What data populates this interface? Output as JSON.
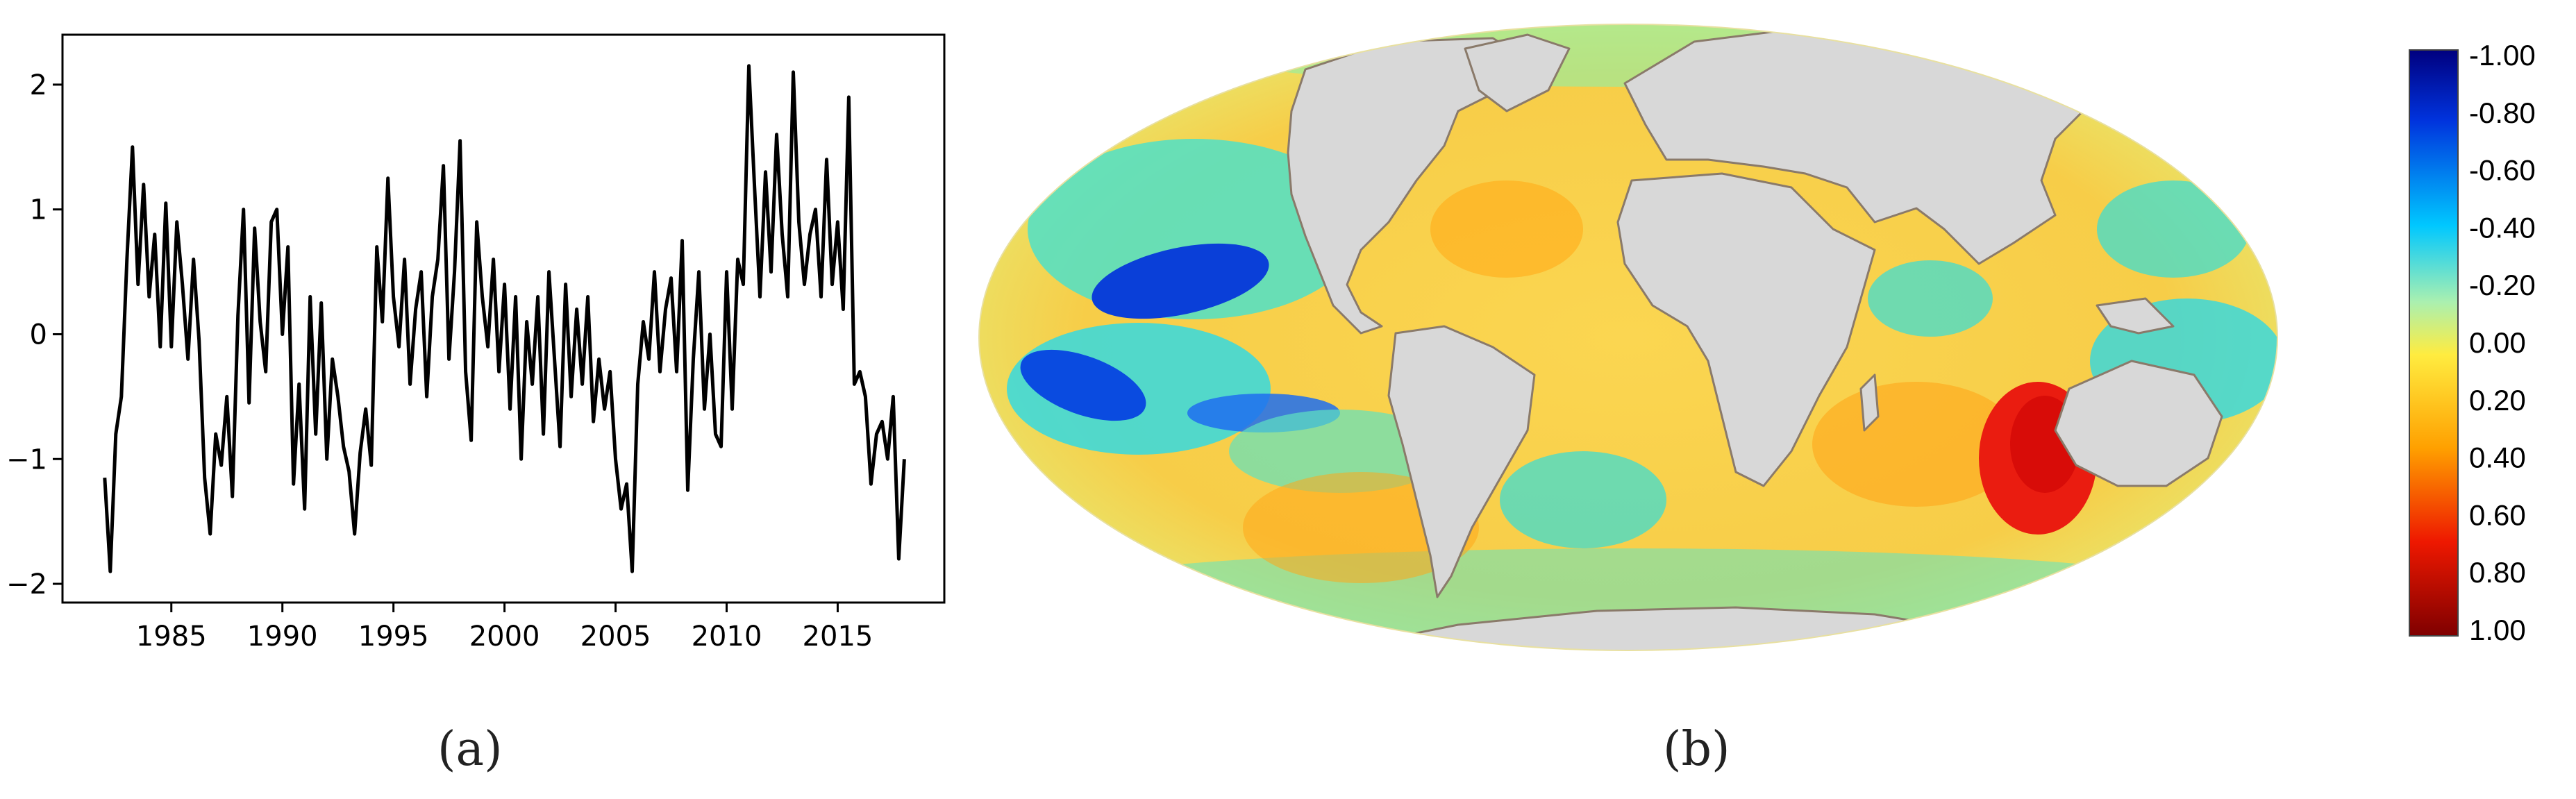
{
  "captions": {
    "a": "(a)",
    "b": "(b)"
  },
  "chart_data": [
    {
      "type": "line",
      "title": "",
      "xlabel": "",
      "ylabel": "",
      "xlim": [
        1980.1,
        2019.8
      ],
      "ylim": [
        -2.15,
        2.4
      ],
      "xticks": [
        1985,
        1990,
        1995,
        2000,
        2005,
        2010,
        2015
      ],
      "xtick_labels": [
        "1985",
        "1990",
        "1995",
        "2000",
        "2005",
        "2010",
        "2015"
      ],
      "yticks": [
        -2,
        -1,
        0,
        1,
        2
      ],
      "ytick_labels": [
        "−2",
        "−1",
        "0",
        "1",
        "2"
      ],
      "grid": false,
      "line_color": "#000000",
      "series": [
        {
          "x": [
            1982.0,
            1982.25,
            1982.5,
            1982.75,
            1983.0,
            1983.25,
            1983.5,
            1983.75,
            1984.0,
            1984.25,
            1984.5,
            1984.75,
            1985.0,
            1985.25,
            1985.5,
            1985.75,
            1986.0,
            1986.25,
            1986.5,
            1986.75,
            1987.0,
            1987.25,
            1987.5,
            1987.75,
            1988.0,
            1988.25,
            1988.5,
            1988.75,
            1989.0,
            1989.25,
            1989.5,
            1989.75,
            1990.0,
            1990.25,
            1990.5,
            1990.75,
            1991.0,
            1991.25,
            1991.5,
            1991.75,
            1992.0,
            1992.25,
            1992.5,
            1992.75,
            1993.0,
            1993.25,
            1993.5,
            1993.75,
            1994.0,
            1994.25,
            1994.5,
            1994.75,
            1995.0,
            1995.25,
            1995.5,
            1995.75,
            1996.0,
            1996.25,
            1996.5,
            1996.75,
            1997.0,
            1997.25,
            1997.5,
            1997.75,
            1998.0,
            1998.25,
            1998.5,
            1998.75,
            1999.0,
            1999.25,
            1999.5,
            1999.75,
            2000.0,
            2000.25,
            2000.5,
            2000.75,
            2001.0,
            2001.25,
            2001.5,
            2001.75,
            2002.0,
            2002.25,
            2002.5,
            2002.75,
            2003.0,
            2003.25,
            2003.5,
            2003.75,
            2004.0,
            2004.25,
            2004.5,
            2004.75,
            2005.0,
            2005.25,
            2005.5,
            2005.75,
            2006.0,
            2006.25,
            2006.5,
            2006.75,
            2007.0,
            2007.25,
            2007.5,
            2007.75,
            2008.0,
            2008.25,
            2008.5,
            2008.75,
            2009.0,
            2009.25,
            2009.5,
            2009.75,
            2010.0,
            2010.25,
            2010.5,
            2010.75,
            2011.0,
            2011.25,
            2011.5,
            2011.75,
            2012.0,
            2012.25,
            2012.5,
            2012.75,
            2013.0,
            2013.25,
            2013.5,
            2013.75,
            2014.0,
            2014.25,
            2014.5,
            2014.75,
            2015.0,
            2015.25,
            2015.5,
            2015.75,
            2016.0,
            2016.25,
            2016.5,
            2016.75,
            2017.0,
            2017.25,
            2017.5,
            2017.75,
            2018.0
          ],
          "values": [
            -1.15,
            -1.9,
            -0.8,
            -0.5,
            0.6,
            1.5,
            0.4,
            1.2,
            0.3,
            0.8,
            -0.1,
            1.05,
            -0.1,
            0.9,
            0.4,
            -0.2,
            0.6,
            -0.05,
            -1.15,
            -1.6,
            -0.8,
            -1.05,
            -0.5,
            -1.3,
            0.15,
            1.0,
            -0.55,
            0.85,
            0.1,
            -0.3,
            0.9,
            1.0,
            0.0,
            0.7,
            -1.2,
            -0.4,
            -1.4,
            0.3,
            -0.8,
            0.25,
            -1.0,
            -0.2,
            -0.5,
            -0.9,
            -1.1,
            -1.6,
            -0.95,
            -0.6,
            -1.05,
            0.7,
            0.1,
            1.25,
            0.3,
            -0.1,
            0.6,
            -0.4,
            0.2,
            0.5,
            -0.5,
            0.3,
            0.6,
            1.35,
            -0.2,
            0.5,
            1.55,
            -0.3,
            -0.85,
            0.9,
            0.3,
            -0.1,
            0.6,
            -0.3,
            0.4,
            -0.6,
            0.3,
            -1.0,
            0.1,
            -0.4,
            0.3,
            -0.8,
            0.5,
            -0.2,
            -0.9,
            0.4,
            -0.5,
            0.2,
            -0.4,
            0.3,
            -0.7,
            -0.2,
            -0.6,
            -0.3,
            -1.0,
            -1.4,
            -1.2,
            -1.9,
            -0.4,
            0.1,
            -0.2,
            0.5,
            -0.3,
            0.2,
            0.45,
            -0.3,
            0.75,
            -1.25,
            -0.2,
            0.5,
            -0.6,
            0.0,
            -0.8,
            -0.9,
            0.5,
            -0.6,
            0.6,
            0.4,
            2.15,
            1.2,
            0.3,
            1.3,
            0.5,
            1.6,
            0.8,
            0.3,
            2.1,
            0.9,
            0.4,
            0.8,
            1.0,
            0.3,
            1.4,
            0.4,
            0.9,
            0.2,
            1.9,
            -0.4,
            -0.3,
            -0.5,
            -1.2,
            -0.8,
            -0.7,
            -1.0,
            -0.5,
            -1.8,
            -1.0
          ]
        }
      ]
    },
    {
      "type": "heatmap",
      "title": "",
      "colorbar": {
        "tick_labels": [
          "-1.00",
          "-0.80",
          "-0.60",
          "-0.40",
          "-0.20",
          "0.00",
          "0.20",
          "0.40",
          "0.60",
          "0.80",
          "1.00"
        ],
        "range": [
          -1.0,
          1.0
        ],
        "colors": [
          "#00007f",
          "#0044ff",
          "#00d6ff",
          "#ffe000",
          "#ff8a00",
          "#e00000",
          "#7f0000"
        ]
      },
      "land_color": "#d8d8d8",
      "ocean_base_color": "#f8ce40"
    }
  ]
}
